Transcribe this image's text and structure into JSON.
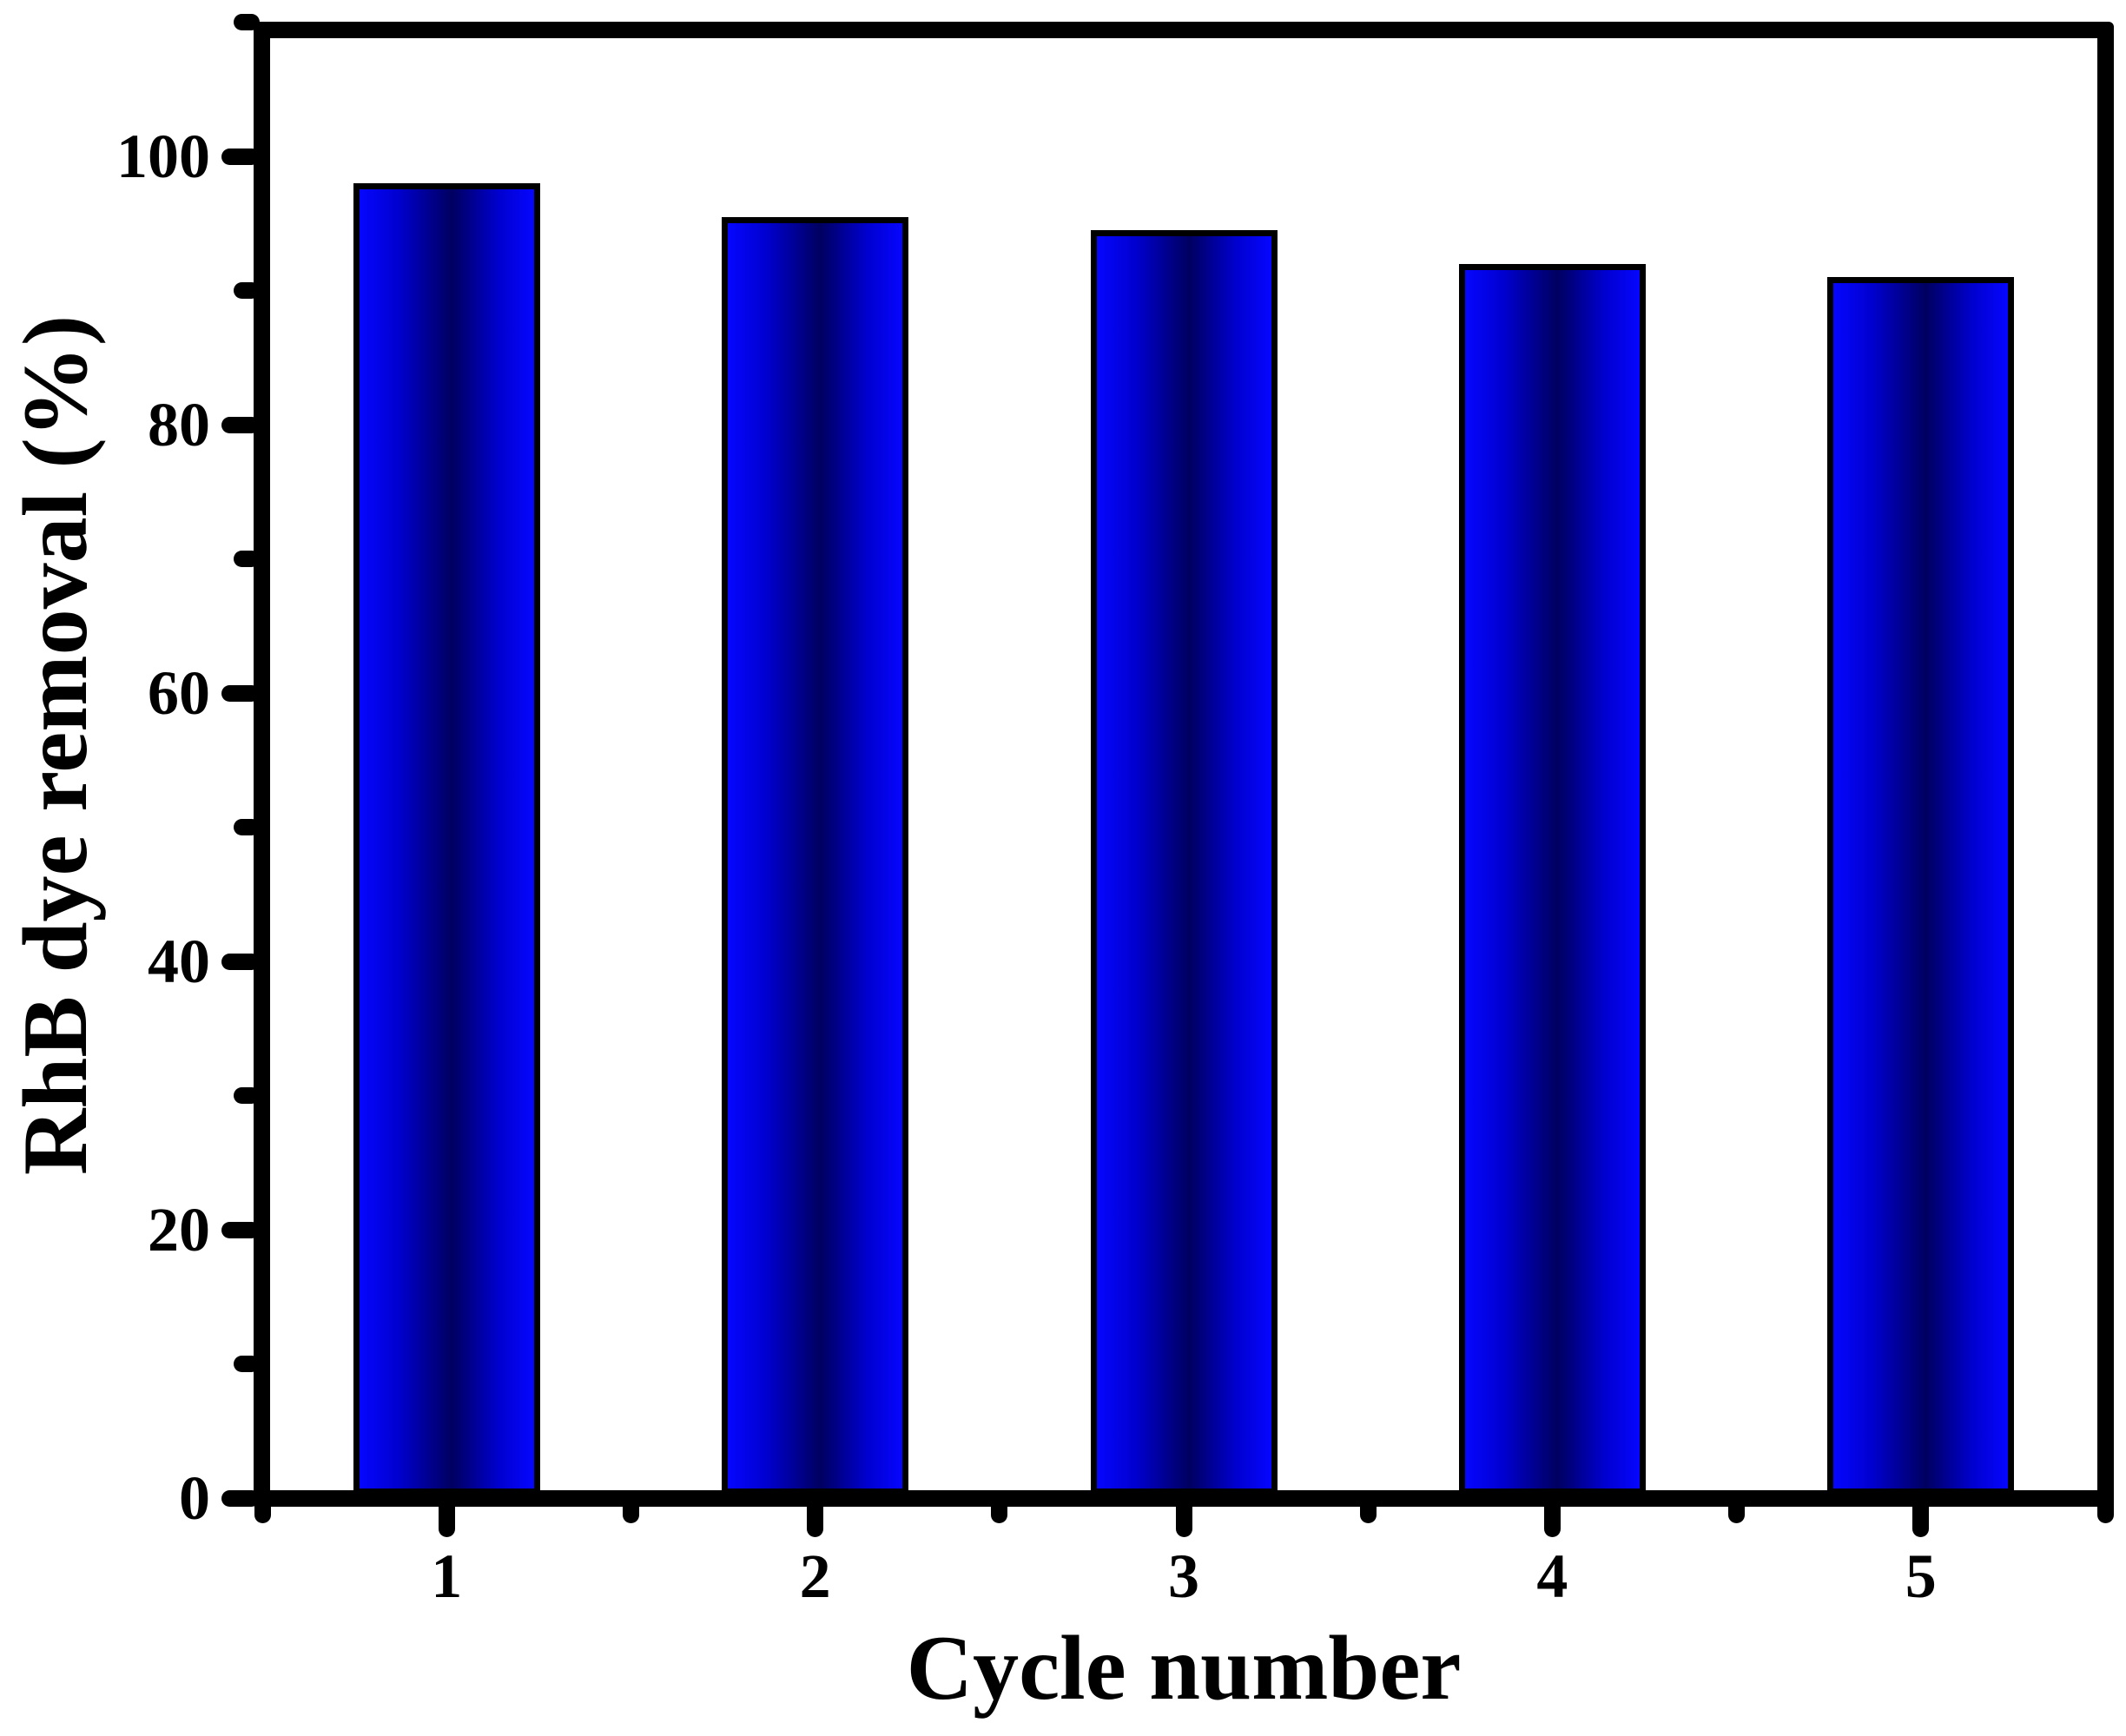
{
  "figure": {
    "background": "#ffffff",
    "frame_color": "#000000",
    "text_color": "#000000"
  },
  "chart_data": {
    "type": "bar",
    "title": "",
    "xlabel": "Cycle number",
    "ylabel": "RhB dye removal (%)",
    "categories": [
      "1",
      "2",
      "3",
      "4",
      "5"
    ],
    "values": [
      98,
      95.5,
      94.5,
      92,
      91
    ],
    "ylim": [
      0,
      110
    ],
    "yticks": [
      0,
      20,
      40,
      60,
      80,
      100
    ],
    "ytick_labels": [
      "0",
      "20",
      "40",
      "60",
      "80",
      "100"
    ],
    "y_minor_ticks": [
      10,
      30,
      50,
      70,
      90,
      110
    ],
    "grid": "off",
    "legend": "none",
    "bar_border_color": "#000000",
    "bar_gradient": {
      "stops": [
        "#0606ff",
        "#0000d0",
        "#000060",
        "#0000d0",
        "#0606ff"
      ],
      "positions": [
        0,
        22,
        53,
        80,
        100
      ]
    }
  }
}
